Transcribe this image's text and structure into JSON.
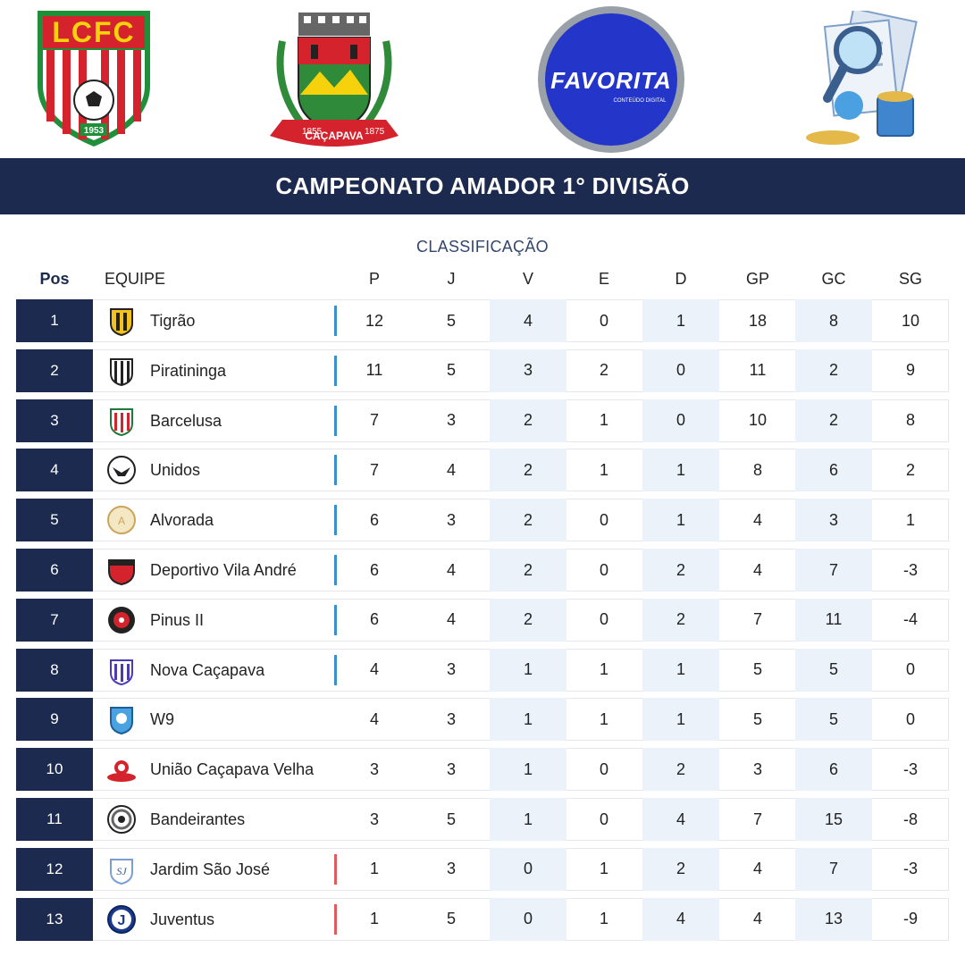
{
  "logos": {
    "lcfc": {
      "text": "LCFC",
      "year": "1953"
    },
    "city": {
      "name": "CAÇAPAVA",
      "year_left": "1855",
      "year_right": "1875"
    },
    "favorita": {
      "name": "FAVORITA",
      "tagline": "CONTEÚDO DIGITAL"
    },
    "news": {
      "icon": "magnifier-newspaper-icon"
    }
  },
  "title": "CAMPEONATO AMADOR 1° DIVISÃO",
  "subtitle": "CLASSIFICAÇÃO",
  "colors": {
    "navy": "#1b2a4e",
    "shade": "#ebf2fa",
    "zone_up": "#3a8fcf",
    "zone_down": "#e05b5b"
  },
  "headers": {
    "pos": "Pos",
    "team": "EQUIPE",
    "p": "P",
    "j": "J",
    "v": "V",
    "e": "E",
    "d": "D",
    "gp": "GP",
    "gc": "GC",
    "sg": "SG"
  },
  "rows": [
    {
      "pos": "1",
      "team": "Tigrão",
      "p": "12",
      "j": "5",
      "v": "4",
      "e": "0",
      "d": "1",
      "gp": "18",
      "gc": "8",
      "sg": "10",
      "zone": "up"
    },
    {
      "pos": "2",
      "team": "Piratininga",
      "p": "11",
      "j": "5",
      "v": "3",
      "e": "2",
      "d": "0",
      "gp": "11",
      "gc": "2",
      "sg": "9",
      "zone": "up"
    },
    {
      "pos": "3",
      "team": "Barcelusa",
      "p": "7",
      "j": "3",
      "v": "2",
      "e": "1",
      "d": "0",
      "gp": "10",
      "gc": "2",
      "sg": "8",
      "zone": "up"
    },
    {
      "pos": "4",
      "team": "Unidos",
      "p": "7",
      "j": "4",
      "v": "2",
      "e": "1",
      "d": "1",
      "gp": "8",
      "gc": "6",
      "sg": "2",
      "zone": "up"
    },
    {
      "pos": "5",
      "team": "Alvorada",
      "p": "6",
      "j": "3",
      "v": "2",
      "e": "0",
      "d": "1",
      "gp": "4",
      "gc": "3",
      "sg": "1",
      "zone": "up"
    },
    {
      "pos": "6",
      "team": "Deportivo Vila André",
      "p": "6",
      "j": "4",
      "v": "2",
      "e": "0",
      "d": "2",
      "gp": "4",
      "gc": "7",
      "sg": "-3",
      "zone": "up"
    },
    {
      "pos": "7",
      "team": "Pinus II",
      "p": "6",
      "j": "4",
      "v": "2",
      "e": "0",
      "d": "2",
      "gp": "7",
      "gc": "11",
      "sg": "-4",
      "zone": "up"
    },
    {
      "pos": "8",
      "team": "Nova Caçapava",
      "p": "4",
      "j": "3",
      "v": "1",
      "e": "1",
      "d": "1",
      "gp": "5",
      "gc": "5",
      "sg": "0",
      "zone": "up"
    },
    {
      "pos": "9",
      "team": "W9",
      "p": "4",
      "j": "3",
      "v": "1",
      "e": "1",
      "d": "1",
      "gp": "5",
      "gc": "5",
      "sg": "0",
      "zone": "none"
    },
    {
      "pos": "10",
      "team": "União Caçapava Velha",
      "p": "3",
      "j": "3",
      "v": "1",
      "e": "0",
      "d": "2",
      "gp": "3",
      "gc": "6",
      "sg": "-3",
      "zone": "none"
    },
    {
      "pos": "11",
      "team": "Bandeirantes",
      "p": "3",
      "j": "5",
      "v": "1",
      "e": "0",
      "d": "4",
      "gp": "7",
      "gc": "15",
      "sg": "-8",
      "zone": "none"
    },
    {
      "pos": "12",
      "team": "Jardim São José",
      "p": "1",
      "j": "3",
      "v": "0",
      "e": "1",
      "d": "2",
      "gp": "4",
      "gc": "7",
      "sg": "-3",
      "zone": "down"
    },
    {
      "pos": "13",
      "team": "Juventus",
      "p": "1",
      "j": "5",
      "v": "0",
      "e": "1",
      "d": "4",
      "gp": "4",
      "gc": "13",
      "sg": "-9",
      "zone": "down"
    }
  ]
}
